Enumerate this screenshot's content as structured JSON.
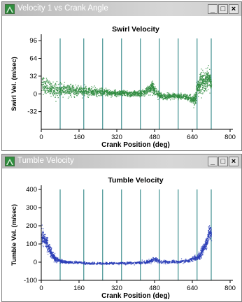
{
  "windows": [
    {
      "title": "Velocity 1 vs Crank Angle",
      "controls": [
        "_",
        "□",
        "×"
      ]
    },
    {
      "title": "Tumble Velocity",
      "controls": [
        "_",
        "□",
        "×"
      ]
    }
  ],
  "colors": {
    "swirl_points": "#2e8b3e",
    "tumble_points": "#2c3fb8",
    "vertical_lines": "#3f8f8f",
    "title_bar": "#c4c4c4"
  },
  "chart_data": [
    {
      "type": "scatter",
      "title": "Swirl Velocity",
      "xlabel": "Crank Position (deg)",
      "ylabel": "Swirl Vel. (m/sec)",
      "xlim": [
        0,
        800
      ],
      "ylim": [
        -64,
        100
      ],
      "xticks": [
        "0",
        "160",
        "320",
        "480",
        "640",
        "800"
      ],
      "yticks": [
        "96",
        "64",
        "32",
        "0",
        "-32"
      ],
      "vlines": [
        80,
        180,
        260,
        340,
        420,
        500,
        580,
        660,
        720
      ],
      "series": [
        {
          "x": [
            0,
            20,
            40,
            60,
            80,
            100,
            120,
            140,
            160,
            180,
            200,
            220,
            240,
            260,
            280,
            300,
            320,
            340,
            360,
            380,
            400,
            420,
            440,
            460,
            470,
            480,
            500,
            520,
            540,
            560,
            580,
            600,
            620,
            640,
            650,
            660,
            670,
            680,
            690,
            700,
            710,
            720
          ],
          "y": [
            20,
            14,
            10,
            8,
            7,
            8,
            7,
            6,
            6,
            5,
            5,
            4,
            4,
            4,
            3,
            2,
            2,
            2,
            1,
            0,
            1,
            2,
            4,
            10,
            15,
            5,
            -2,
            -4,
            -4,
            -3,
            -4,
            -4,
            -6,
            -10,
            -12,
            10,
            20,
            25,
            22,
            28,
            30,
            20
          ],
          "spread": [
            16,
            14,
            12,
            12,
            10,
            10,
            10,
            9,
            9,
            8,
            8,
            7,
            7,
            6,
            6,
            5,
            5,
            5,
            5,
            5,
            5,
            5,
            6,
            8,
            10,
            8,
            6,
            5,
            5,
            5,
            5,
            5,
            6,
            8,
            10,
            16,
            18,
            18,
            18,
            16,
            16,
            12
          ]
        }
      ]
    },
    {
      "type": "scatter",
      "title": "Tumble Velocity",
      "xlabel": "Crank Position (deg)",
      "ylabel": "Tumble Vel. (m/sec)",
      "xlim": [
        0,
        800
      ],
      "ylim": [
        -100,
        400
      ],
      "xticks": [
        "0",
        "160",
        "320",
        "480",
        "640",
        "800"
      ],
      "yticks": [
        "400",
        "300",
        "200",
        "100",
        "0",
        "-100"
      ],
      "vlines": [
        80,
        180,
        260,
        340,
        420,
        500,
        580,
        660,
        720
      ],
      "series": [
        {
          "x": [
            0,
            10,
            20,
            30,
            40,
            50,
            60,
            80,
            100,
            120,
            160,
            200,
            240,
            280,
            320,
            360,
            400,
            440,
            460,
            480,
            500,
            540,
            580,
            620,
            640,
            660,
            670,
            680,
            690,
            700,
            710,
            720
          ],
          "y": [
            150,
            130,
            110,
            85,
            55,
            30,
            18,
            8,
            3,
            2,
            0,
            -5,
            -5,
            -5,
            -4,
            -3,
            -2,
            0,
            8,
            20,
            5,
            3,
            5,
            10,
            18,
            28,
            40,
            60,
            90,
            110,
            170,
            150
          ],
          "spread": [
            45,
            40,
            35,
            30,
            25,
            18,
            14,
            10,
            8,
            7,
            6,
            6,
            6,
            6,
            6,
            6,
            7,
            8,
            10,
            14,
            10,
            8,
            8,
            10,
            14,
            18,
            20,
            24,
            28,
            30,
            35,
            30
          ]
        }
      ]
    }
  ]
}
